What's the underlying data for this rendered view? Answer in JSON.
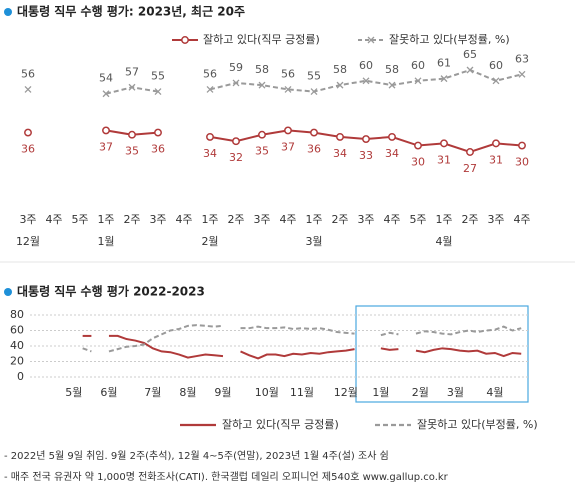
{
  "chart_data": [
    {
      "type": "line",
      "title": "대통령 직무 수행 평가: 2023년, 최근 20주",
      "categories": [
        "3주",
        "4주",
        "5주",
        "1주",
        "2주",
        "3주",
        "4주",
        "1주",
        "2주",
        "3주",
        "4주",
        "1주",
        "2주",
        "3주",
        "4주",
        "5주",
        "1주",
        "2주",
        "3주",
        "4주"
      ],
      "month_labels": [
        "12월",
        null,
        null,
        "1월",
        null,
        null,
        null,
        "2월",
        null,
        null,
        null,
        "3월",
        null,
        null,
        null,
        null,
        "4월",
        null,
        null,
        null
      ],
      "series": [
        {
          "name": "잘하고 있다(직무 긍정률)",
          "color": "#b03a3a",
          "marker": "circle",
          "dashed": false,
          "label_position": "below",
          "values": [
            36,
            null,
            null,
            37,
            35,
            36,
            null,
            34,
            32,
            35,
            37,
            36,
            34,
            33,
            34,
            30,
            31,
            27,
            31,
            30
          ]
        },
        {
          "name": "잘못하고 있다(부정률, %)",
          "color": "#9a9a9a",
          "marker": "x",
          "dashed": true,
          "label_position": "above",
          "values": [
            56,
            null,
            null,
            54,
            57,
            55,
            null,
            56,
            59,
            58,
            56,
            55,
            58,
            60,
            58,
            60,
            61,
            65,
            60,
            63
          ]
        }
      ]
    },
    {
      "type": "line",
      "title": "대통령 직무 수행 평가 2022-2023",
      "x": [
        6,
        7,
        8,
        9,
        10,
        11,
        12,
        13,
        14,
        15,
        16,
        17,
        18,
        19,
        20,
        21,
        22,
        23,
        24,
        25,
        26,
        27,
        28,
        29,
        30,
        31,
        32,
        33,
        34,
        35,
        36,
        37,
        38,
        39,
        40,
        41,
        42,
        43,
        44,
        45,
        46,
        47,
        48,
        49,
        50,
        51,
        52,
        53,
        54,
        55,
        56
      ],
      "xlim": [
        0,
        57
      ],
      "xticks": [
        {
          "value": 5,
          "label": "5월"
        },
        {
          "value": 9,
          "label": "6월"
        },
        {
          "value": 14,
          "label": "7월"
        },
        {
          "value": 18,
          "label": "8월"
        },
        {
          "value": 22,
          "label": "9월"
        },
        {
          "value": 27,
          "label": "10월"
        },
        {
          "value": 31,
          "label": "11월"
        },
        {
          "value": 36,
          "label": "12월"
        },
        {
          "value": 40,
          "label": "1월"
        },
        {
          "value": 44.5,
          "label": "2월"
        },
        {
          "value": 48.5,
          "label": "3월"
        },
        {
          "value": 53,
          "label": "4월"
        }
      ],
      "ylim": [
        0,
        80
      ],
      "yticks": [
        0,
        20,
        40,
        60,
        80
      ],
      "grid": true,
      "series": [
        {
          "name": "잘하고 있다(직무 긍정률)",
          "color": "#b03a3a",
          "dashed": false,
          "values": [
            53,
            53,
            null,
            53,
            53,
            49,
            47,
            44,
            37,
            33,
            32,
            29,
            25,
            27,
            29,
            28,
            27,
            null,
            33,
            28,
            24,
            29,
            29,
            27,
            30,
            29,
            31,
            30,
            32,
            33,
            34,
            36,
            null,
            null,
            37,
            35,
            36,
            null,
            34,
            32,
            35,
            37,
            36,
            34,
            33,
            34,
            30,
            31,
            27,
            31,
            30
          ]
        },
        {
          "name": "잘못하고 있다(부정률, %)",
          "color": "#9a9a9a",
          "dashed": true,
          "values": [
            37,
            33,
            null,
            33,
            36,
            39,
            40,
            42,
            50,
            55,
            60,
            62,
            66,
            67,
            66,
            65,
            66,
            null,
            63,
            63,
            65,
            63,
            63,
            64,
            62,
            63,
            62,
            63,
            61,
            58,
            57,
            56,
            null,
            null,
            54,
            57,
            55,
            null,
            56,
            59,
            58,
            56,
            55,
            58,
            60,
            58,
            60,
            61,
            65,
            60,
            63
          ]
        }
      ]
    }
  ],
  "notes": [
    "- 2022년 5월 9일 취임. 9월 2주(추석), 12월 4~5주(연말), 2023년 1월 4주(설) 조사 쉼",
    "- 매주 전국 유권자 약 1,000명 전화조사(CATI). 한국갤럽 데일리 오피니언 제540호 www.gallup.co.kr"
  ]
}
